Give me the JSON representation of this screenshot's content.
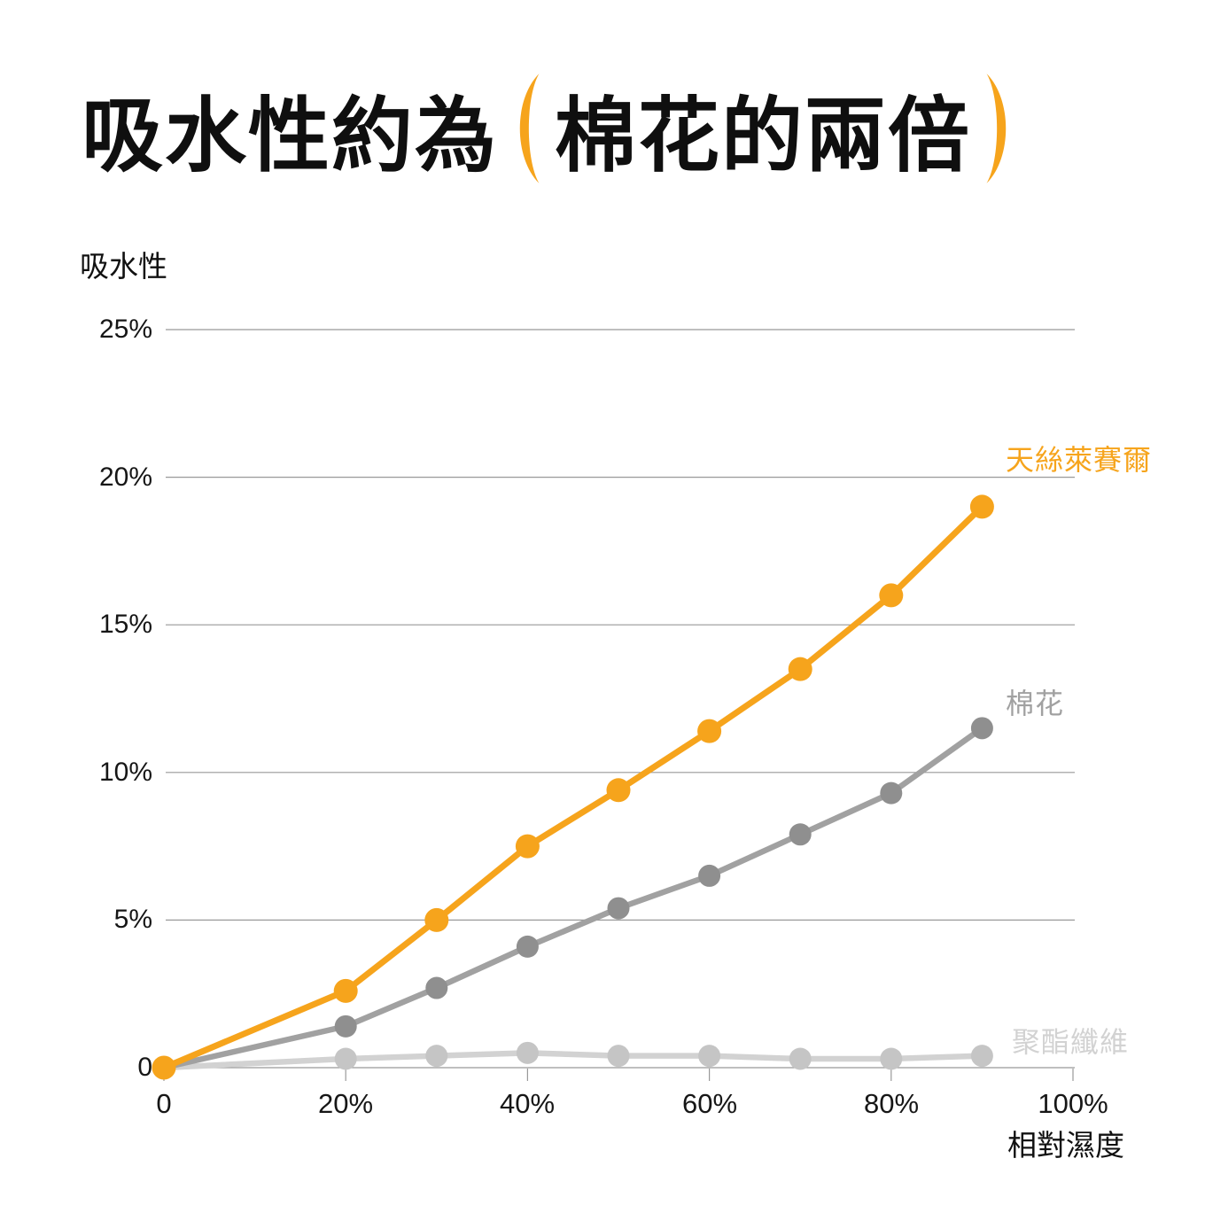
{
  "title": {
    "part1": "吸水性約為",
    "highlight": "棉花的兩倍",
    "full": "吸水性約為（棉花的兩倍）"
  },
  "colors": {
    "accent": "#F6A41C",
    "cotton_gray": "#A1A1A1",
    "polyester_gray": "#D2D2D2",
    "grid": "#999999",
    "axis_text": "#161616"
  },
  "chart_data": {
    "type": "line",
    "title": "吸水性約為（棉花的兩倍）",
    "ylabel": "吸水性",
    "xlabel": "相對濕度",
    "xlim": [
      0,
      100
    ],
    "ylim": [
      0,
      25
    ],
    "grid": "horizontal",
    "legend_position": "right-inline",
    "x_ticks": [
      "0",
      "20%",
      "40%",
      "60%",
      "80%",
      "100%"
    ],
    "x_tick_values": [
      0,
      20,
      40,
      60,
      80,
      100
    ],
    "y_ticks": [
      "0",
      "5%",
      "10%",
      "15%",
      "20%",
      "25%"
    ],
    "y_tick_values": [
      0,
      5,
      10,
      15,
      20,
      25
    ],
    "x": [
      0,
      20,
      30,
      40,
      50,
      60,
      70,
      80,
      90
    ],
    "series": [
      {
        "id": "polyester",
        "name": "聚酯纖維",
        "color": "#D2D2D2",
        "dot_color": "#C5C5C5",
        "values": [
          0,
          0.3,
          0.4,
          0.5,
          0.4,
          0.4,
          0.3,
          0.3,
          0.4
        ]
      },
      {
        "id": "cotton",
        "name": "棉花",
        "color": "#A1A1A1",
        "dot_color": "#8F8F8F",
        "values": [
          0,
          1.4,
          2.7,
          4.1,
          5.4,
          6.5,
          7.9,
          9.3,
          11.5
        ]
      },
      {
        "id": "lyocell",
        "name": "天絲萊賽爾",
        "color": "#F6A41C",
        "dot_color": "#F6A41C",
        "values": [
          0,
          2.6,
          5.0,
          7.5,
          9.4,
          11.4,
          13.5,
          16.0,
          19.0
        ]
      }
    ]
  }
}
